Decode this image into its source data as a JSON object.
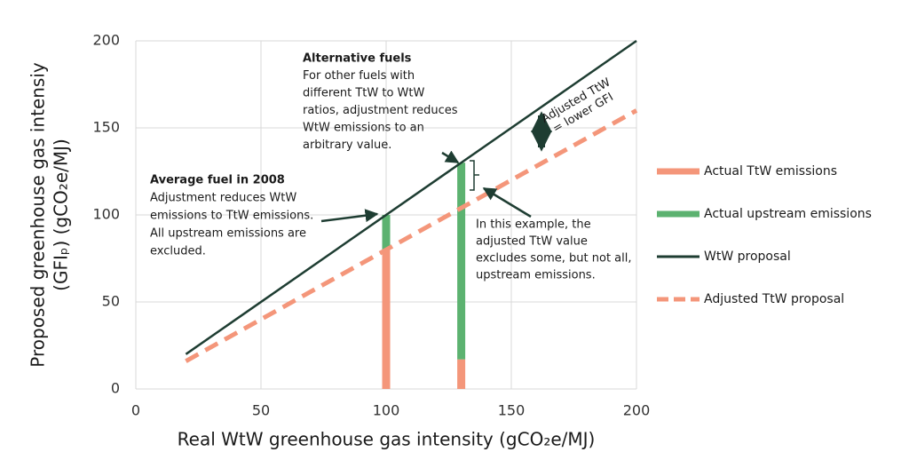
{
  "chart_data": {
    "type": "combo",
    "xlabel": "Real WtW greenhouse gas intensity (gCO₂e/MJ)",
    "ylabel": [
      "Proposed greenhouse gas intensiy",
      "(GFIₚ) (gCO₂e/MJ)"
    ],
    "xlim": [
      0,
      200
    ],
    "ylim": [
      0,
      200
    ],
    "xticks": [
      0,
      50,
      100,
      150,
      200
    ],
    "yticks": [
      0,
      50,
      100,
      150,
      200
    ],
    "grid": true,
    "series": [
      {
        "name": "Actual TtW emissions",
        "type": "bar",
        "color": "#f4967a",
        "x": [
          100,
          130
        ],
        "values": [
          80,
          17
        ]
      },
      {
        "name": "Actual upstream emissions",
        "type": "bar",
        "color": "#5cb270",
        "x": [
          100,
          130
        ],
        "values": [
          20,
          113
        ]
      },
      {
        "name": "WtW proposal",
        "type": "line",
        "color": "#1e3d32",
        "x": [
          20,
          200
        ],
        "values": [
          20,
          200
        ]
      },
      {
        "name": "Adjusted TtW proposal",
        "type": "line",
        "dashed": true,
        "color": "#f4967a",
        "x": [
          20,
          200
        ],
        "values": [
          16,
          160
        ]
      }
    ],
    "annotations": [
      {
        "title": "Alternative fuels",
        "lines": [
          "For other fuels with",
          "different TtW to WtW",
          "ratios, adjustment reduces",
          "WtW emissions to an",
          "arbitrary value."
        ]
      },
      {
        "title": "Average fuel in 2008",
        "lines": [
          "Adjustment reduces WtW",
          "emissions to TtW emissions.",
          "All upstream emissions are",
          "excluded."
        ]
      },
      {
        "lines": [
          "In this example, the",
          "adjusted TtW value",
          "excludes some, but not all,",
          "upstream emissions."
        ]
      },
      {
        "lines": [
          "Adjusted TtW",
          "= lower GFI"
        ]
      }
    ]
  }
}
